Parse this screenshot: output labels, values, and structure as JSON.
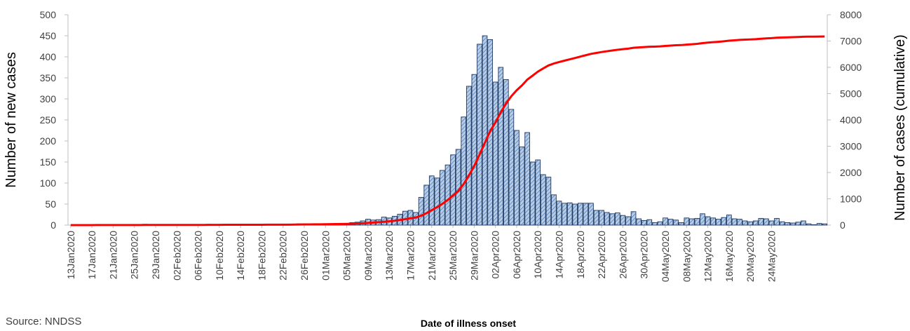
{
  "source_note": "Source: NNDSS",
  "chart_data": {
    "type": "bar",
    "xlabel": "Date of illness onset",
    "ylabel": "Number of new cases",
    "y2label": "Number of cases (cumulative)",
    "ylim": [
      0,
      500
    ],
    "y2lim": [
      0,
      8000
    ],
    "yticks": [
      "0",
      "50",
      "100",
      "150",
      "200",
      "250",
      "300",
      "350",
      "400",
      "450",
      "500"
    ],
    "y2ticks": [
      "0",
      "1000",
      "2000",
      "3000",
      "4000",
      "5000",
      "6000",
      "7000",
      "8000"
    ],
    "xtick_labels": [
      "13Jan2020",
      "17Jan2020",
      "21Jan2020",
      "25Jan2020",
      "29Jan2020",
      "02Feb2020",
      "06Feb2020",
      "10Feb2020",
      "14Feb2020",
      "18Feb2020",
      "22Feb2020",
      "26Feb2020",
      "01Mar2020",
      "05Mar2020",
      "09Mar2020",
      "13Mar2020",
      "17Mar2020",
      "21Mar2020",
      "25Mar2020",
      "29Mar2020",
      "02Apr2020",
      "06Apr2020",
      "10Apr2020",
      "14Apr2020",
      "18Apr2020",
      "22Apr2020",
      "26Apr2020",
      "30Apr2020",
      "04May2020",
      "08May2020",
      "12May2020",
      "16May2020",
      "20May2020",
      "24May2020"
    ],
    "start_label": "13Jan2020",
    "bar_fill": "#b8cce4",
    "bar_stroke": "#1f3864",
    "line_color": "#ff0000",
    "series": [
      {
        "kind": "bar",
        "axis": "left",
        "values": [
          0,
          0,
          1,
          0,
          0,
          1,
          0,
          0,
          0,
          0,
          0,
          1,
          0,
          0,
          2,
          0,
          0,
          1,
          0,
          0,
          1,
          0,
          0,
          1,
          0,
          0,
          2,
          1,
          0,
          1,
          0,
          0,
          1,
          1,
          0,
          1,
          0,
          1,
          0,
          1,
          0,
          1,
          2,
          3,
          2,
          3,
          2,
          1,
          3,
          2,
          4,
          3,
          4,
          6,
          7,
          10,
          14,
          12,
          13,
          19,
          17,
          21,
          26,
          33,
          35,
          30,
          66,
          95,
          117,
          112,
          130,
          143,
          167,
          180,
          257,
          330,
          358,
          430,
          450,
          441,
          340,
          375,
          346,
          275,
          225,
          186,
          220,
          150,
          155,
          120,
          114,
          72,
          57,
          52,
          53,
          50,
          52,
          52,
          52,
          35,
          35,
          30,
          27,
          29,
          23,
          20,
          32,
          15,
          11,
          13,
          6,
          8,
          17,
          14,
          12,
          6,
          17,
          15,
          16,
          27,
          20,
          17,
          14,
          18,
          24,
          15,
          14,
          10,
          8,
          10,
          16,
          15,
          10,
          16,
          8,
          6,
          5,
          7,
          10,
          3,
          1,
          4,
          3
        ]
      },
      {
        "kind": "line",
        "axis": "right",
        "values": [
          0,
          0,
          1,
          1,
          1,
          2,
          2,
          2,
          2,
          2,
          2,
          3,
          3,
          3,
          5,
          5,
          5,
          6,
          6,
          6,
          7,
          7,
          7,
          8,
          8,
          8,
          10,
          11,
          11,
          12,
          12,
          12,
          13,
          14,
          14,
          15,
          15,
          16,
          16,
          17,
          17,
          18,
          20,
          23,
          25,
          28,
          30,
          31,
          34,
          36,
          40,
          43,
          47,
          53,
          60,
          70,
          84,
          96,
          109,
          128,
          145,
          166,
          192,
          225,
          260,
          290,
          356,
          451,
          568,
          680,
          810,
          953,
          1120,
          1300,
          1557,
          1887,
          2245,
          2675,
          3125,
          3566,
          3906,
          4281,
          4627,
          4902,
          5127,
          5313,
          5533,
          5683,
          5838,
          5958,
          6072,
          6144,
          6201,
          6253,
          6306,
          6356,
          6408,
          6460,
          6512,
          6547,
          6582,
          6612,
          6639,
          6668,
          6691,
          6711,
          6743,
          6758,
          6769,
          6782,
          6788,
          6796,
          6813,
          6827,
          6839,
          6845,
          6862,
          6877,
          6893,
          6920,
          6940,
          6957,
          6971,
          6989,
          7013,
          7028,
          7042,
          7052,
          7060,
          7070,
          7086,
          7101,
          7111,
          7127,
          7135,
          7141,
          7146,
          7153,
          7163,
          7166,
          7167,
          7171,
          7174
        ]
      }
    ]
  }
}
